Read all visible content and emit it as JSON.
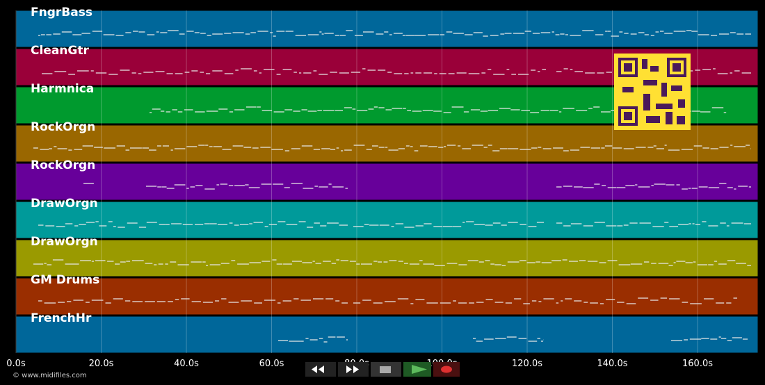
{
  "tracks": [
    {
      "name": "FngrBass",
      "color": "#00679a"
    },
    {
      "name": "CleanGtr",
      "color": "#9a0039"
    },
    {
      "name": "Harmnica",
      "color": "#009a2e"
    },
    {
      "name": "RockOrgn",
      "color": "#9a6700"
    },
    {
      "name": "RockOrgn",
      "color": "#67009a"
    },
    {
      "name": "DrawOrgn",
      "color": "#009a9a"
    },
    {
      "name": "DrawOrgn",
      "color": "#9a9a00"
    },
    {
      "name": "GM Drums",
      "color": "#9a2e00"
    },
    {
      "name": "FrenchHr",
      "color": "#00679a"
    }
  ],
  "time_axis": {
    "xlim": [
      0,
      174.2
    ],
    "ticks": [
      {
        "value": 0,
        "label": "0.0s"
      },
      {
        "value": 20,
        "label": "20.0s"
      },
      {
        "value": 40,
        "label": "40.0s"
      },
      {
        "value": 60,
        "label": "60.0s"
      },
      {
        "value": 80,
        "label": "80.0s"
      },
      {
        "value": 100,
        "label": "100.0s"
      },
      {
        "value": 120,
        "label": "120.0s"
      },
      {
        "value": 140,
        "label": "140.0s"
      },
      {
        "value": 160,
        "label": "160.0s"
      }
    ]
  },
  "copyright": "© www.midifiles.com"
}
